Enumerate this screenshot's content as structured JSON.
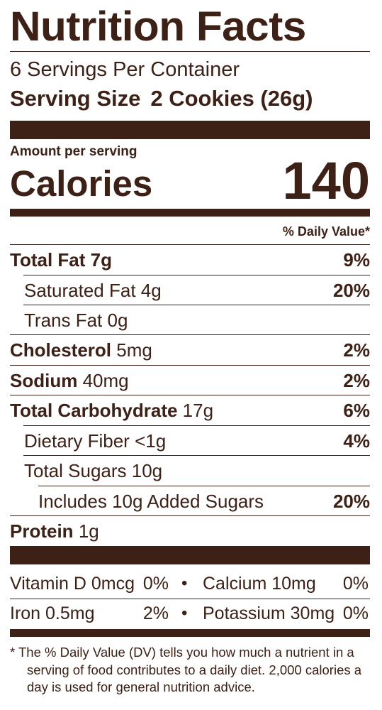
{
  "label": {
    "title": "Nutrition Facts",
    "servings_per_container": "6 Servings Per Container",
    "serving_size_label": "Serving Size",
    "serving_size_value": "2 Cookies (26g)",
    "amount_per_serving": "Amount per serving",
    "calories_label": "Calories",
    "calories_value": "140",
    "daily_value_header": "% Daily Value*"
  },
  "nutrients": [
    {
      "name": "Total Fat",
      "amount": "7g",
      "percent": "9%"
    },
    {
      "name": "Saturated Fat",
      "amount": "4g",
      "percent": "20%"
    },
    {
      "name": "Trans Fat",
      "amount": "0g",
      "percent": ""
    },
    {
      "name": "Cholesterol",
      "amount": "5mg",
      "percent": "2%"
    },
    {
      "name": "Sodium",
      "amount": "40mg",
      "percent": "2%"
    },
    {
      "name": "Total Carbohydrate",
      "amount": "17g",
      "percent": "6%"
    },
    {
      "name": "Dietary Fiber",
      "amount": "<1g",
      "percent": "4%"
    },
    {
      "name": "Total Sugars",
      "amount": "10g",
      "percent": ""
    },
    {
      "name": "Includes 10g Added Sugars",
      "amount": "",
      "percent": "20%"
    },
    {
      "name": "Protein",
      "amount": "1g",
      "percent": ""
    }
  ],
  "vitamins": [
    {
      "name": "Vitamin D 0mcg",
      "percent": "0%"
    },
    {
      "name": "Calcium 10mg",
      "percent": "0%"
    },
    {
      "name": "Iron 0.5mg",
      "percent": "2%"
    },
    {
      "name": "Potassium 30mg",
      "percent": "0%"
    }
  ],
  "separator": "•",
  "footnote": {
    "star": "*",
    "text": "The % Daily Value (DV) tells you how much a nutrient in a serving of food contributes to a daily diet. 2,000 calories a day is used for general nutrition advice."
  },
  "colors": {
    "ink": "#3d2016",
    "background": "#ffffff"
  }
}
